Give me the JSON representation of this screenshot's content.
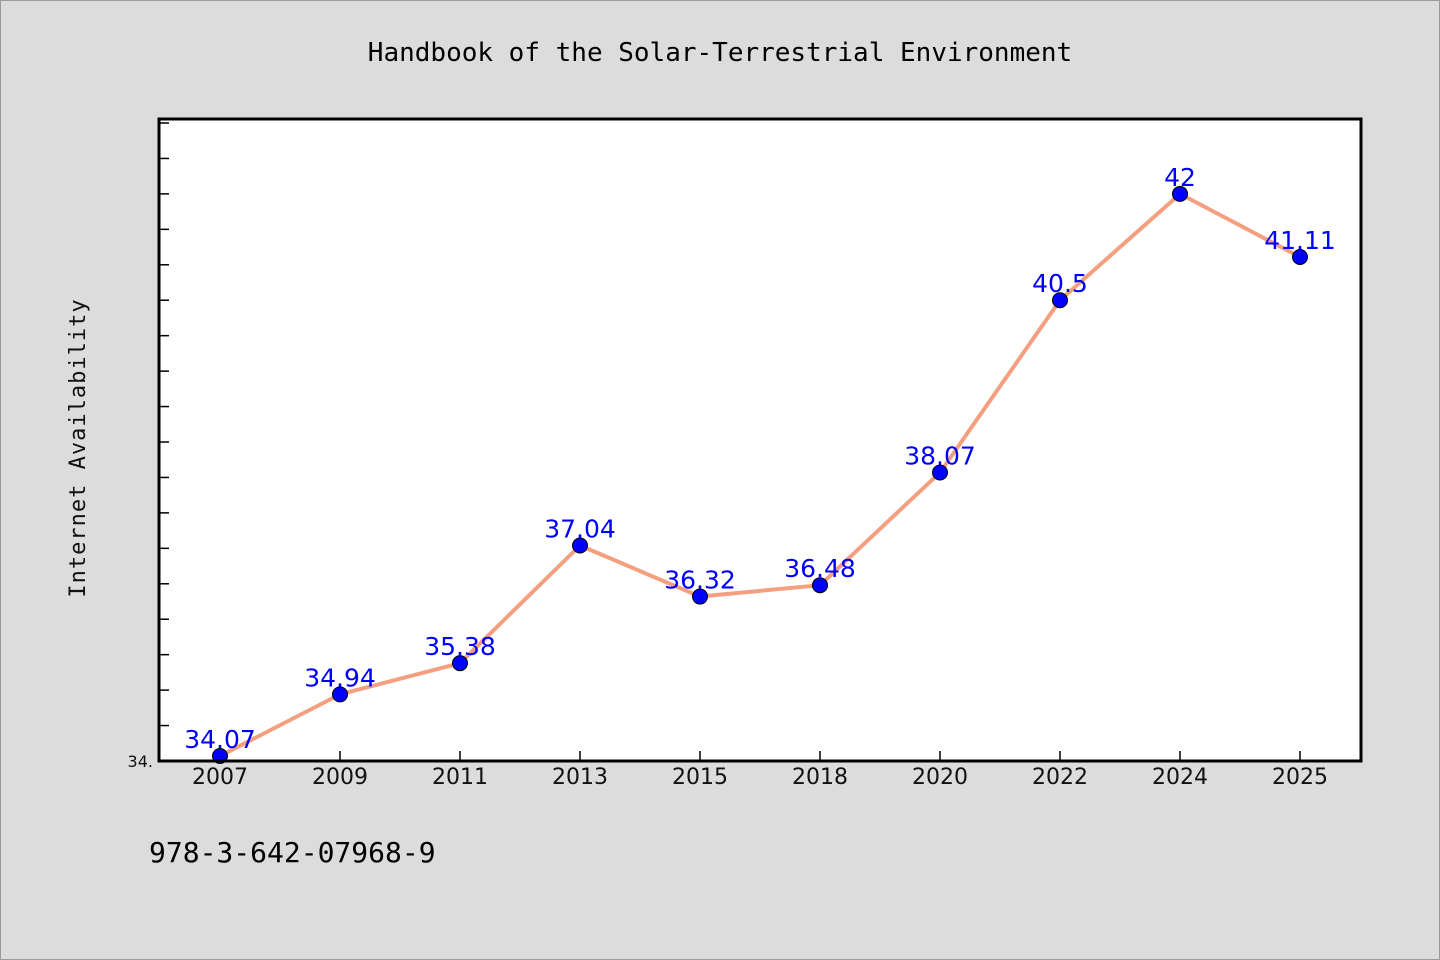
{
  "chart_data": {
    "type": "line",
    "title": "Handbook of the Solar-Terrestrial Environment",
    "ylabel": "Internet Availability",
    "xlabel": "",
    "categories": [
      "2007",
      "2009",
      "2011",
      "2013",
      "2015",
      "2018",
      "2020",
      "2022",
      "2024",
      "2025"
    ],
    "series": [
      {
        "values": [
          34.07,
          34.94,
          35.38,
          37.04,
          36.32,
          36.48,
          38.07,
          40.5,
          42,
          41.11
        ],
        "labels": [
          "34.07",
          "34.94",
          "35.38",
          "37.04",
          "36.32",
          "36.48",
          "38.07",
          "40.5",
          "42",
          "41.11"
        ]
      }
    ],
    "ylim": [
      34,
      43
    ],
    "y_tick_label": "34.",
    "grid": false,
    "line_color": "#f4a080",
    "marker_color": "#0000ff",
    "label_color": "#0000ff",
    "plot_background": "#ffffff",
    "figure_background": "#dcdcdc"
  },
  "footer": {
    "isbn": "978-3-642-07968-9"
  }
}
